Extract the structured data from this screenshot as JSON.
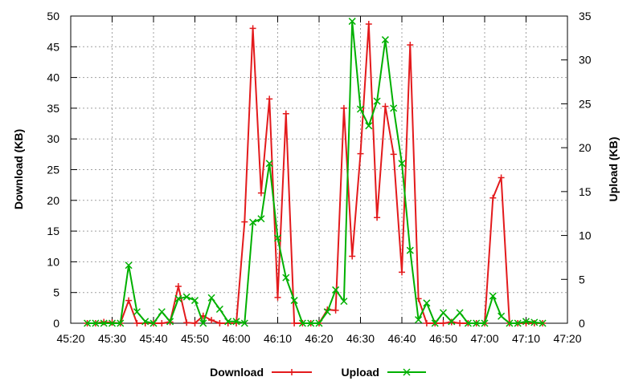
{
  "chart_data": {
    "type": "line",
    "title": "",
    "x_axis": {
      "ticks": [
        "45:20",
        "45:30",
        "45:40",
        "45:50",
        "46:00",
        "46:10",
        "46:20",
        "46:30",
        "46:40",
        "46:50",
        "47:00",
        "47:10",
        "47:20"
      ]
    },
    "y_axis_left": {
      "label": "Download (KB)",
      "ylim": [
        0,
        50
      ],
      "ticks": [
        "0",
        "5",
        "10",
        "15",
        "20",
        "25",
        "30",
        "35",
        "40",
        "45",
        "50"
      ]
    },
    "y_axis_right": {
      "label": "Upload (KB)",
      "ylim": [
        0,
        35
      ],
      "ticks": [
        "0",
        "5",
        "10",
        "15",
        "20",
        "25",
        "30",
        "35"
      ]
    },
    "grid": true,
    "legend_position": "bottom-center",
    "series": [
      {
        "name": "Download",
        "axis": "left",
        "color": "#e31a1c",
        "marker": "plus",
        "x": [
          "45:24",
          "45:26",
          "45:28",
          "45:30",
          "45:32",
          "45:34",
          "45:36",
          "45:38",
          "45:40",
          "45:42",
          "45:44",
          "45:46",
          "45:48",
          "45:50",
          "45:52",
          "45:54",
          "45:56",
          "45:58",
          "46:00",
          "46:02",
          "46:04",
          "46:06",
          "46:08",
          "46:10",
          "46:12",
          "46:14",
          "46:16",
          "46:18",
          "46:20",
          "46:22",
          "46:24",
          "46:26",
          "46:28",
          "46:30",
          "46:32",
          "46:34",
          "46:36",
          "46:38",
          "46:40",
          "46:42",
          "46:44",
          "46:46",
          "46:48",
          "46:50",
          "46:52",
          "46:54",
          "46:56",
          "46:58",
          "47:00",
          "47:02",
          "47:04",
          "47:06",
          "47:08",
          "47:10",
          "47:12",
          "47:14"
        ],
        "values": [
          0,
          0,
          0.2,
          0.1,
          0,
          3.7,
          0,
          0,
          0,
          0,
          0.2,
          6,
          0.1,
          0,
          1.2,
          0.5,
          0,
          0,
          0,
          16.5,
          48,
          21.2,
          36.5,
          4.2,
          34.1,
          0,
          0,
          0,
          0,
          2.2,
          2.1,
          35,
          10.9,
          27.6,
          48.7,
          17.2,
          35.3,
          27.5,
          8.3,
          45.3,
          4,
          0,
          0,
          0,
          0.2,
          0,
          0,
          0,
          0,
          20.4,
          23.7,
          0,
          0,
          0,
          0,
          0
        ]
      },
      {
        "name": "Upload",
        "axis": "right",
        "color": "#00b000",
        "marker": "x",
        "x": [
          "45:24",
          "45:26",
          "45:28",
          "45:30",
          "45:32",
          "45:34",
          "45:36",
          "45:38",
          "45:40",
          "45:42",
          "45:44",
          "45:46",
          "45:48",
          "45:50",
          "45:52",
          "45:54",
          "45:56",
          "45:58",
          "46:00",
          "46:02",
          "46:04",
          "46:06",
          "46:08",
          "46:10",
          "46:12",
          "46:14",
          "46:16",
          "46:18",
          "46:20",
          "46:22",
          "46:24",
          "46:26",
          "46:28",
          "46:30",
          "46:32",
          "46:34",
          "46:36",
          "46:38",
          "46:40",
          "46:42",
          "46:44",
          "46:46",
          "46:48",
          "46:50",
          "46:52",
          "46:54",
          "46:56",
          "46:58",
          "47:00",
          "47:02",
          "47:04",
          "47:06",
          "47:08",
          "47:10",
          "47:12",
          "47:14"
        ],
        "values": [
          0,
          0,
          0,
          0,
          0,
          6.6,
          1.3,
          0.2,
          0,
          1.3,
          0.2,
          2.8,
          3,
          2.6,
          0,
          2.9,
          1.6,
          0.2,
          0.2,
          0,
          11.5,
          11.9,
          18.2,
          9.7,
          5.2,
          2.6,
          0,
          0,
          0,
          1.3,
          3.8,
          2.5,
          34.4,
          24.4,
          22.5,
          25.3,
          32.3,
          24.5,
          18.2,
          8.3,
          0.4,
          2.3,
          0,
          1.2,
          0.2,
          1.2,
          0,
          0,
          0,
          3.1,
          0.8,
          0,
          0,
          0.2,
          0.1,
          0
        ]
      }
    ]
  }
}
